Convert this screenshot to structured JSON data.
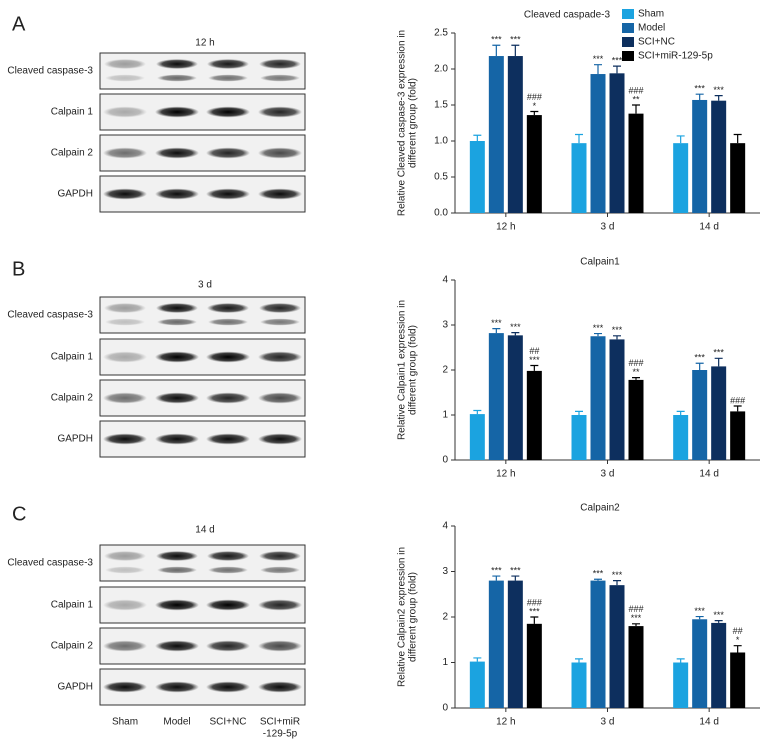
{
  "blots": [
    {
      "letter": "A",
      "time": "12 h",
      "rows": [
        "Cleaved caspase-3",
        "Calpain 1",
        "Calpain 2",
        "GAPDH"
      ]
    },
    {
      "letter": "B",
      "time": "3 d",
      "rows": [
        "Cleaved caspase-3",
        "Calpain 1",
        "Calpain 2",
        "GAPDH"
      ]
    },
    {
      "letter": "C",
      "time": "14 d",
      "rows": [
        "Cleaved caspase-3",
        "Calpain 1",
        "Calpain 2",
        "GAPDH"
      ]
    }
  ],
  "lanes": [
    [
      "Sham"
    ],
    [
      "Model"
    ],
    [
      "SCI+NC"
    ],
    [
      "SCI+miR",
      "-129-5p"
    ]
  ],
  "chart_data": [
    {
      "type": "bar",
      "title": "Cleaved caspade-3",
      "ylabel": [
        "Relative Cleaved caspase-3 expression in",
        "different group (fold)"
      ],
      "categories": [
        "12 h",
        "3 d",
        "14 d"
      ],
      "ylim": [
        0,
        2.5
      ],
      "yticks": [
        {
          "value": 0,
          "label": "0.0"
        },
        0.5,
        {
          "value": 1,
          "label": "1.0"
        },
        1.5,
        {
          "value": 2,
          "label": "2.0"
        },
        2.5
      ],
      "legend": "upper right",
      "series": [
        {
          "name": "Sham",
          "color": "#1ba3e0",
          "values": [
            1.0,
            0.97,
            0.97
          ],
          "errors": [
            0.08,
            0.12,
            0.1
          ],
          "annotations": [
            null,
            null,
            null
          ]
        },
        {
          "name": "Model",
          "color": "#1565a6",
          "values": [
            2.18,
            1.93,
            1.57
          ],
          "errors": [
            0.15,
            0.13,
            0.08
          ],
          "annotations": [
            [
              "***"
            ],
            [
              "***"
            ],
            [
              "***"
            ]
          ]
        },
        {
          "name": "SCI+NC",
          "color": "#0d2f5e",
          "values": [
            2.18,
            1.94,
            1.56
          ],
          "errors": [
            0.15,
            0.1,
            0.07
          ],
          "annotations": [
            [
              "***"
            ],
            [
              "***"
            ],
            [
              "***"
            ]
          ]
        },
        {
          "name": "SCI+miR-129-5p",
          "color": "#000000",
          "values": [
            1.36,
            1.38,
            0.97
          ],
          "errors": [
            0.05,
            0.12,
            0.12
          ],
          "annotations": [
            [
              "###",
              "*"
            ],
            [
              "###",
              "**"
            ],
            null
          ]
        }
      ]
    },
    {
      "type": "bar",
      "title": "Calpain1",
      "ylabel": [
        "Relative Calpain1 expression in",
        "different group (fold)"
      ],
      "categories": [
        "12 h",
        "3 d",
        "14 d"
      ],
      "ylim": [
        0,
        4
      ],
      "yticks": [
        0,
        1,
        2,
        3,
        4
      ],
      "series": [
        {
          "name": "Sham",
          "color": "#1ba3e0",
          "values": [
            1.02,
            1.0,
            1.0
          ],
          "errors": [
            0.08,
            0.08,
            0.08
          ],
          "annotations": [
            null,
            null,
            null
          ]
        },
        {
          "name": "Model",
          "color": "#1565a6",
          "values": [
            2.82,
            2.75,
            2.0
          ],
          "errors": [
            0.1,
            0.06,
            0.15
          ],
          "annotations": [
            [
              "***"
            ],
            [
              "***"
            ],
            [
              "***"
            ]
          ]
        },
        {
          "name": "SCI+NC",
          "color": "#0d2f5e",
          "values": [
            2.77,
            2.68,
            2.08
          ],
          "errors": [
            0.06,
            0.08,
            0.18
          ],
          "annotations": [
            [
              "***"
            ],
            [
              "***"
            ],
            [
              "***"
            ]
          ]
        },
        {
          "name": "SCI+miR-129-5p",
          "color": "#000000",
          "values": [
            1.98,
            1.78,
            1.08
          ],
          "errors": [
            0.12,
            0.05,
            0.12
          ],
          "annotations": [
            [
              "##",
              "***"
            ],
            [
              "###",
              "**"
            ],
            [
              "###"
            ]
          ]
        }
      ]
    },
    {
      "type": "bar",
      "title": "Calpain2",
      "ylabel": [
        "Relative Calpain2 expression in",
        "different group (fold)"
      ],
      "categories": [
        "12 h",
        "3 d",
        "14 d"
      ],
      "ylim": [
        0,
        4
      ],
      "yticks": [
        0,
        1,
        2,
        3,
        4
      ],
      "series": [
        {
          "name": "Sham",
          "color": "#1ba3e0",
          "values": [
            1.02,
            1.0,
            1.0
          ],
          "errors": [
            0.08,
            0.08,
            0.08
          ],
          "annotations": [
            null,
            null,
            null
          ]
        },
        {
          "name": "Model",
          "color": "#1565a6",
          "values": [
            2.8,
            2.8,
            1.95
          ],
          "errors": [
            0.1,
            0.03,
            0.06
          ],
          "annotations": [
            [
              "***"
            ],
            [
              "***"
            ],
            [
              "***"
            ]
          ]
        },
        {
          "name": "SCI+NC",
          "color": "#0d2f5e",
          "values": [
            2.8,
            2.7,
            1.87
          ],
          "errors": [
            0.1,
            0.1,
            0.05
          ],
          "annotations": [
            [
              "***"
            ],
            [
              "***"
            ],
            [
              "***"
            ]
          ]
        },
        {
          "name": "SCI+miR-129-5p",
          "color": "#000000",
          "values": [
            1.85,
            1.8,
            1.22
          ],
          "errors": [
            0.15,
            0.05,
            0.15
          ],
          "annotations": [
            [
              "###",
              "***"
            ],
            [
              "###",
              "***"
            ],
            [
              "##",
              "*"
            ]
          ]
        }
      ]
    }
  ]
}
